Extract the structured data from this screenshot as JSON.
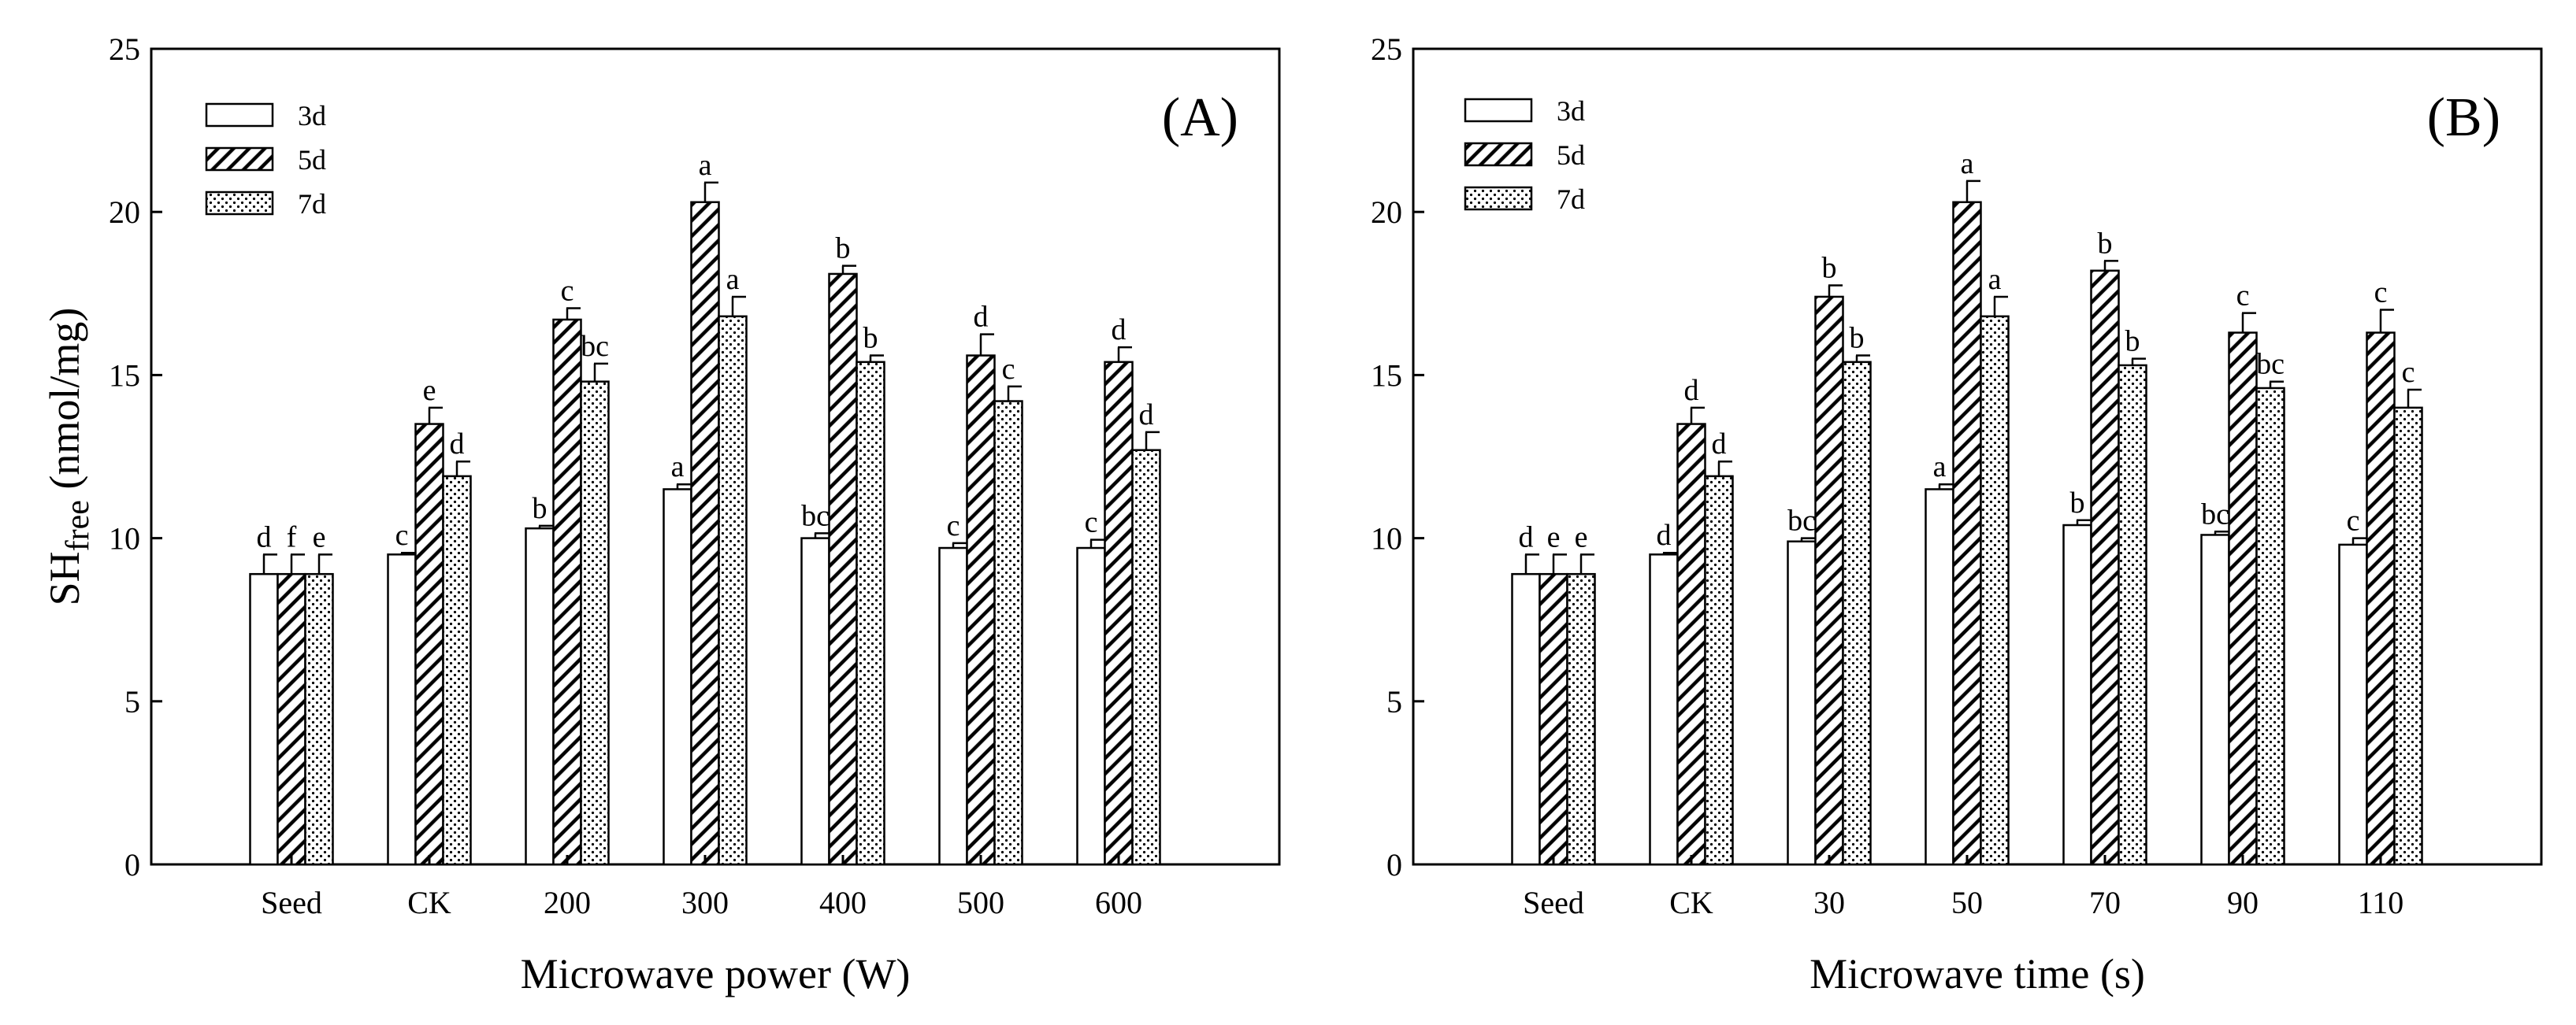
{
  "chart_data": [
    {
      "type": "bar",
      "panel_label": "(A)",
      "xlabel": "Microwave power (W)",
      "ylabel_main": "SH",
      "ylabel_sub": "free",
      "ylabel_unit": " (nmol/mg)",
      "ylim": [
        0,
        25
      ],
      "yticks": [
        "0",
        "5",
        "10",
        "15",
        "20",
        "25"
      ],
      "legend_position": "top-left",
      "categories": [
        "Seed",
        "CK",
        "200",
        "300",
        "400",
        "500",
        "600"
      ],
      "series": [
        {
          "name": "3d",
          "pattern": "plain",
          "values": [
            8.9,
            9.5,
            10.3,
            11.5,
            10.0,
            9.7,
            9.7
          ],
          "errors": [
            0.6,
            0.05,
            0.08,
            0.15,
            0.15,
            0.15,
            0.25
          ],
          "letters": [
            "d",
            "c",
            "b",
            "a",
            "bc",
            "c",
            "c"
          ]
        },
        {
          "name": "5d",
          "pattern": "hatch",
          "values": [
            8.9,
            13.5,
            16.7,
            20.3,
            18.1,
            15.6,
            15.4
          ],
          "errors": [
            0.6,
            0.5,
            0.35,
            0.6,
            0.25,
            0.65,
            0.45
          ],
          "letters": [
            "f",
            "e",
            "c",
            "a",
            "b",
            "d",
            "d"
          ]
        },
        {
          "name": "7d",
          "pattern": "dots",
          "values": [
            8.9,
            11.9,
            14.8,
            16.8,
            15.4,
            14.2,
            12.7
          ],
          "errors": [
            0.6,
            0.45,
            0.55,
            0.6,
            0.2,
            0.45,
            0.55
          ],
          "letters": [
            "e",
            "d",
            "bc",
            "a",
            "b",
            "c",
            "d"
          ]
        }
      ]
    },
    {
      "type": "bar",
      "panel_label": "(B)",
      "xlabel": "Microwave time (s)",
      "ylim": [
        0,
        25
      ],
      "yticks": [
        "0",
        "5",
        "10",
        "15",
        "20",
        "25"
      ],
      "legend_position": "top-left",
      "categories": [
        "Seed",
        "CK",
        "30",
        "50",
        "70",
        "90",
        "110"
      ],
      "series": [
        {
          "name": "3d",
          "pattern": "plain",
          "values": [
            8.9,
            9.5,
            9.9,
            11.5,
            10.4,
            10.1,
            9.8
          ],
          "errors": [
            0.6,
            0.05,
            0.1,
            0.15,
            0.15,
            0.1,
            0.2
          ],
          "letters": [
            "d",
            "d",
            "bc",
            "a",
            "b",
            "bc",
            "c"
          ]
        },
        {
          "name": "5d",
          "pattern": "hatch",
          "values": [
            8.9,
            13.5,
            17.4,
            20.3,
            18.2,
            16.3,
            16.3
          ],
          "errors": [
            0.6,
            0.5,
            0.35,
            0.65,
            0.3,
            0.6,
            0.7
          ],
          "letters": [
            "e",
            "d",
            "b",
            "a",
            "b",
            "c",
            "c"
          ]
        },
        {
          "name": "7d",
          "pattern": "dots",
          "values": [
            8.9,
            11.9,
            15.4,
            16.8,
            15.3,
            14.6,
            14.0
          ],
          "errors": [
            0.6,
            0.45,
            0.2,
            0.6,
            0.2,
            0.2,
            0.55
          ],
          "letters": [
            "e",
            "d",
            "b",
            "a",
            "b",
            "bc",
            "c"
          ]
        }
      ]
    }
  ]
}
